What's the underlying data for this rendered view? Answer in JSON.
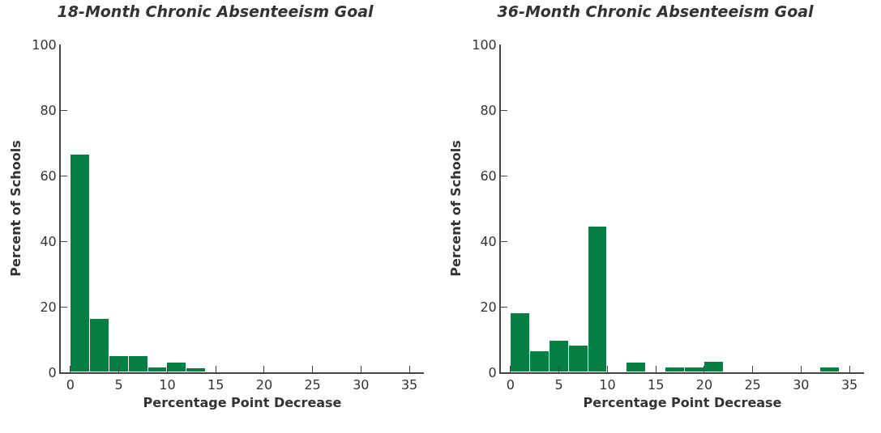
{
  "chart_data": [
    {
      "type": "histogram",
      "title": "18-Month Chronic Absenteeism Goal",
      "xlabel": "Percentage Point Decrease",
      "ylabel": "Percent of Schools",
      "color": "#047f44",
      "bins": [
        0,
        2,
        4,
        6,
        8,
        10,
        12,
        14
      ],
      "values": [
        66.3,
        16.4,
        4.9,
        4.9,
        1.5,
        2.9,
        1.3
      ],
      "xlim": [
        -1,
        36.5
      ],
      "xticks": [
        0,
        5,
        10,
        15,
        20,
        25,
        30,
        35
      ],
      "ylim": [
        0,
        100
      ],
      "yticks": [
        0,
        20,
        40,
        60,
        80,
        100
      ],
      "grid": false
    },
    {
      "type": "histogram",
      "title": "36-Month Chronic Absenteeism Goal",
      "xlabel": "Percentage Point Decrease",
      "ylabel": "Percent of Schools",
      "color": "#047f44",
      "bins": [
        0,
        2,
        4,
        6,
        8,
        10,
        12,
        14,
        16,
        18,
        20,
        22,
        24,
        26,
        28,
        30,
        32,
        34,
        36
      ],
      "values": [
        18.0,
        6.4,
        9.7,
        8.1,
        44.4,
        0,
        2.9,
        0,
        1.6,
        1.6,
        3.1,
        0,
        0,
        0,
        0,
        0,
        1.6,
        0
      ],
      "xlim": [
        -1,
        36.5
      ],
      "xticks": [
        0,
        5,
        10,
        15,
        20,
        25,
        30,
        35
      ],
      "ylim": [
        0,
        100
      ],
      "yticks": [
        0,
        20,
        40,
        60,
        80,
        100
      ],
      "grid": false
    }
  ]
}
